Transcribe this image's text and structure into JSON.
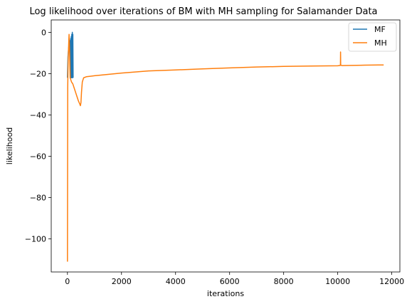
{
  "chart_data": {
    "type": "line",
    "title": "Log likelihood over iterations of BM with MH sampling for Salamander Data",
    "xlabel": "iterations",
    "ylabel": "likelihood",
    "xlim": [
      -600,
      12300
    ],
    "ylim": [
      -116,
      6
    ],
    "xticks": [
      0,
      2000,
      4000,
      6000,
      8000,
      10000,
      12000
    ],
    "yticks": [
      0,
      -20,
      -40,
      -60,
      -80,
      -100
    ],
    "xtick_labels": [
      "0",
      "2000",
      "4000",
      "6000",
      "8000",
      "10000",
      "12000"
    ],
    "ytick_labels": [
      "0",
      "−20",
      "−40",
      "−60",
      "−80",
      "−100"
    ],
    "grid": false,
    "legend_position": "top-right",
    "series": [
      {
        "name": "MF",
        "color": "#1f77b4",
        "x": [
          0,
          20,
          40,
          60,
          80,
          100,
          110,
          120,
          130,
          140,
          150,
          160,
          170,
          180,
          190,
          200,
          210
        ],
        "y": [
          -22,
          -12,
          -8,
          -6,
          -5,
          -4,
          -22,
          -3,
          -22,
          -2,
          -22,
          -1,
          -22,
          0,
          -22,
          -1,
          -22
        ]
      },
      {
        "name": "MH",
        "color": "#ff7f0e",
        "x": [
          0,
          10,
          20,
          30,
          40,
          50,
          60,
          70,
          80,
          100,
          150,
          200,
          250,
          300,
          350,
          400,
          450,
          480,
          500,
          520,
          550,
          600,
          700,
          1000,
          2000,
          3000,
          4000,
          5000,
          6000,
          7000,
          8000,
          9000,
          10000,
          10050,
          10100,
          10105,
          10110,
          10150,
          10500,
          11000,
          11500,
          11700
        ],
        "y": [
          -111,
          -27,
          -18,
          -12,
          -8,
          -4,
          -1,
          -5,
          -10,
          -22,
          -24,
          -25,
          -27,
          -29,
          -31,
          -33,
          -34.5,
          -35.5,
          -34,
          -29,
          -24,
          -22,
          -21.5,
          -21,
          -19.7,
          -18.7,
          -18.2,
          -17.7,
          -17.2,
          -16.8,
          -16.5,
          -16.3,
          -16.2,
          -16.1,
          -16,
          -9.5,
          -15.8,
          -16.1,
          -16,
          -15.9,
          -15.8,
          -15.8
        ]
      }
    ]
  }
}
